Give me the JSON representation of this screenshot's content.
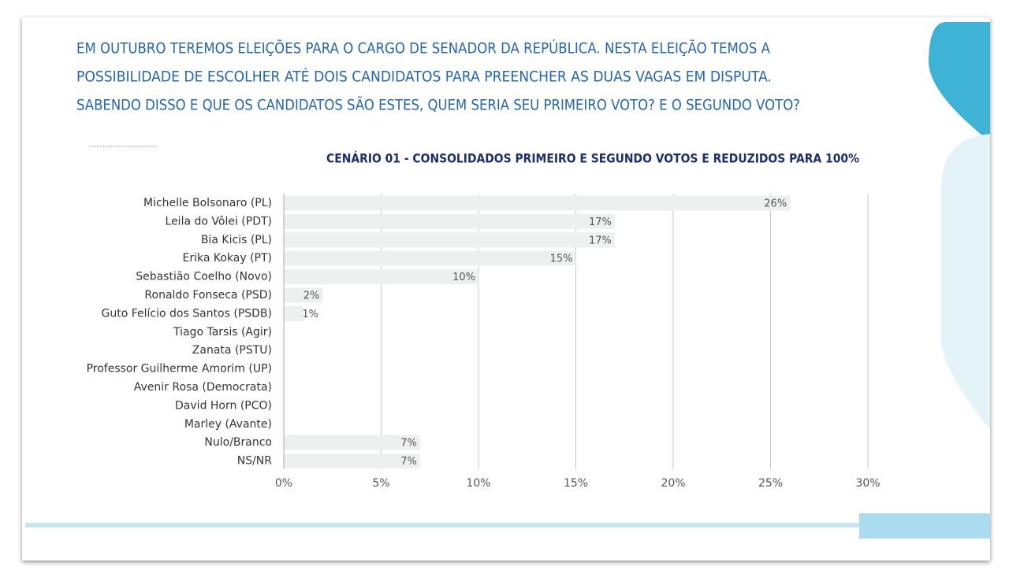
{
  "question_lines": [
    "EM OUTUBRO TEREMOS ELEIÇÕES PARA O CARGO DE SENADOR DA REPÚBLICA. NESTA ELEIÇÃO TEMOS A",
    "POSSIBILIDADE DE ESCOLHER ATÉ DOIS CANDIDATOS PARA PREENCHER AS DUAS VAGAS EM DISPUTA.",
    "SABENDO DISSO E QUE OS CANDIDATOS SÃO ESTES, QUEM SERIA SEU PRIMEIRO VOTO? E O SEGUNDO VOTO?"
  ],
  "chart_data": {
    "type": "bar",
    "orientation": "horizontal",
    "title": "CENÁRIO 01 - CONSOLIDADOS PRIMEIRO E SEGUNDO VOTOS E REDUZIDOS PARA 100%",
    "categories": [
      "Michelle Bolsonaro (PL)",
      "Leila do Vôlei (PDT)",
      "Bia Kicis (PL)",
      "Erika Kokay (PT)",
      "Sebastião Coelho (Novo)",
      "Ronaldo Fonseca (PSD)",
      "Guto Felício dos Santos (PSDB)",
      "Tiago Tarsis (Agir)",
      "Zanata (PSTU)",
      "Professor Guilherme Amorim (UP)",
      "Avenir Rosa (Democrata)",
      "David Horn (PCO)",
      "Marley (Avante)",
      "Nulo/Branco",
      "NS/NR"
    ],
    "values": [
      26,
      17,
      17,
      15,
      10,
      2,
      1,
      0,
      0,
      0,
      0,
      0,
      0,
      7,
      7
    ],
    "value_labels": [
      "26%",
      "17%",
      "17%",
      "15%",
      "10%",
      "2%",
      "1%",
      null,
      null,
      null,
      null,
      null,
      null,
      "7%",
      "7%"
    ],
    "color": "#eef0f0",
    "xlim": [
      0,
      30
    ],
    "xticks": [
      {
        "value": 0,
        "label": "0%"
      },
      {
        "value": 5,
        "label": "5%"
      },
      {
        "value": 10,
        "label": "10%"
      },
      {
        "value": 15,
        "label": "15%"
      },
      {
        "value": 20,
        "label": "20%"
      },
      {
        "value": 25,
        "label": "25%"
      },
      {
        "value": 30,
        "label": "30%"
      }
    ],
    "grid": true
  }
}
